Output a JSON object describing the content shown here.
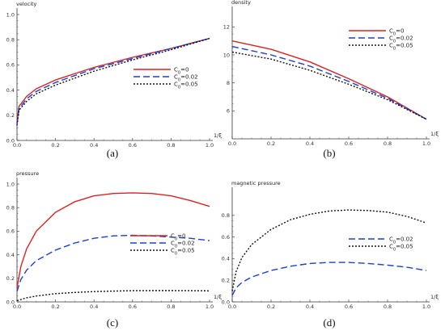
{
  "chart_data": [
    {
      "type": "line",
      "ylabel": "velocity",
      "xlabel": "1/ξ",
      "caption": "(a)",
      "xlim": [
        0,
        1.0
      ],
      "ylim": [
        0,
        1.0
      ],
      "xticks": [
        "0.0",
        "0.2",
        "0.4",
        "0.6",
        "0.8",
        "1.0"
      ],
      "yticks": [
        "0.0",
        "0.2",
        "0.4",
        "0.6",
        "0.8",
        "1.0"
      ],
      "legend_position": "center-right",
      "series": [
        {
          "name": "C0=0",
          "color": "#e02020",
          "dash": "solid",
          "x": [
            0,
            0.01,
            0.05,
            0.1,
            0.2,
            0.4,
            0.6,
            0.8,
            1.0
          ],
          "y": [
            0.14,
            0.27,
            0.35,
            0.41,
            0.48,
            0.58,
            0.66,
            0.73,
            0.81
          ]
        },
        {
          "name": "C0=0.02",
          "color": "#1a3fd6",
          "dash": "long",
          "x": [
            0,
            0.01,
            0.05,
            0.1,
            0.2,
            0.4,
            0.6,
            0.8,
            1.0
          ],
          "y": [
            0.13,
            0.25,
            0.33,
            0.39,
            0.46,
            0.57,
            0.65,
            0.73,
            0.81
          ]
        },
        {
          "name": "C0=0.05",
          "color": "#111111",
          "dash": "dot",
          "x": [
            0,
            0.01,
            0.05,
            0.1,
            0.2,
            0.4,
            0.6,
            0.8,
            1.0
          ],
          "y": [
            0.12,
            0.24,
            0.31,
            0.37,
            0.44,
            0.55,
            0.64,
            0.72,
            0.81
          ]
        }
      ]
    },
    {
      "type": "line",
      "ylabel": "density",
      "xlabel": "1/ξ",
      "caption": "(b)",
      "xlim": [
        0,
        1.0
      ],
      "ylim": [
        4,
        13
      ],
      "xticks": [
        "0.0",
        "0.2",
        "0.4",
        "0.6",
        "0.8",
        "1.0"
      ],
      "yticks": [
        "6",
        "8",
        "10",
        "12"
      ],
      "legend_position": "top-right",
      "series": [
        {
          "name": "C0=0",
          "color": "#e02020",
          "dash": "solid",
          "x": [
            0,
            0.2,
            0.4,
            0.6,
            0.8,
            1.0
          ],
          "y": [
            11.0,
            10.4,
            9.5,
            8.3,
            7.0,
            5.4
          ]
        },
        {
          "name": "C0=0.02",
          "color": "#1a3fd6",
          "dash": "long",
          "x": [
            0,
            0.2,
            0.4,
            0.6,
            0.8,
            1.0
          ],
          "y": [
            10.6,
            10.0,
            9.2,
            8.1,
            6.9,
            5.4
          ]
        },
        {
          "name": "C0=0.05",
          "color": "#111111",
          "dash": "dot",
          "x": [
            0,
            0.2,
            0.4,
            0.6,
            0.8,
            1.0
          ],
          "y": [
            10.2,
            9.7,
            8.9,
            7.9,
            6.8,
            5.4
          ]
        }
      ]
    },
    {
      "type": "line",
      "ylabel": "pressure",
      "xlabel": "1/ξ",
      "caption": "(c)",
      "xlim": [
        0,
        1.0
      ],
      "ylim": [
        0,
        1.0
      ],
      "xticks": [
        "0.0",
        "0.2",
        "0.4",
        "0.6",
        "0.8",
        "1.0"
      ],
      "yticks": [
        "0.0",
        "0.2",
        "0.4",
        "0.6",
        "0.8",
        "1.0"
      ],
      "legend_position": "center-right",
      "series": [
        {
          "name": "C0=0",
          "color": "#e02020",
          "dash": "solid",
          "x": [
            0,
            0.02,
            0.05,
            0.1,
            0.2,
            0.3,
            0.4,
            0.5,
            0.6,
            0.7,
            0.8,
            0.9,
            1.0
          ],
          "y": [
            0.12,
            0.3,
            0.45,
            0.6,
            0.76,
            0.85,
            0.9,
            0.92,
            0.925,
            0.92,
            0.9,
            0.86,
            0.81
          ]
        },
        {
          "name": "C0=0.02",
          "color": "#1a3fd6",
          "dash": "long",
          "x": [
            0,
            0.02,
            0.05,
            0.1,
            0.2,
            0.3,
            0.4,
            0.5,
            0.6,
            0.7,
            0.8,
            0.9,
            1.0
          ],
          "y": [
            0.09,
            0.19,
            0.27,
            0.35,
            0.44,
            0.5,
            0.54,
            0.56,
            0.565,
            0.56,
            0.55,
            0.54,
            0.52
          ]
        },
        {
          "name": "C0=0.05",
          "color": "#111111",
          "dash": "dot",
          "x": [
            0,
            0.02,
            0.05,
            0.1,
            0.2,
            0.3,
            0.4,
            0.5,
            0.6,
            0.7,
            0.8,
            0.9,
            1.0
          ],
          "y": [
            0.01,
            0.02,
            0.035,
            0.05,
            0.07,
            0.08,
            0.088,
            0.092,
            0.095,
            0.096,
            0.096,
            0.095,
            0.094
          ]
        }
      ]
    },
    {
      "type": "line",
      "ylabel": "magnetic pressure",
      "xlabel": "1/ξ",
      "caption": "(d)",
      "xlim": [
        0,
        1.0
      ],
      "ylim": [
        0,
        1.0
      ],
      "xticks": [
        "0.0",
        "0.2",
        "0.4",
        "0.6",
        "0.8",
        "1.0"
      ],
      "yticks": [
        "0.0",
        "0.2",
        "0.4",
        "0.6",
        "0.8"
      ],
      "legend_position": "center-right",
      "series": [
        {
          "name": "C0=0.02",
          "color": "#1a3fd6",
          "dash": "long",
          "x": [
            0,
            0.02,
            0.05,
            0.1,
            0.2,
            0.3,
            0.4,
            0.5,
            0.6,
            0.7,
            0.8,
            0.9,
            1.0
          ],
          "y": [
            0.06,
            0.13,
            0.18,
            0.23,
            0.29,
            0.33,
            0.355,
            0.365,
            0.365,
            0.355,
            0.34,
            0.32,
            0.29
          ]
        },
        {
          "name": "C0=0.05",
          "color": "#111111",
          "dash": "dot",
          "x": [
            0,
            0.02,
            0.05,
            0.1,
            0.2,
            0.3,
            0.4,
            0.5,
            0.6,
            0.7,
            0.8,
            0.9,
            1.0
          ],
          "y": [
            0.1,
            0.28,
            0.41,
            0.53,
            0.67,
            0.76,
            0.81,
            0.84,
            0.85,
            0.845,
            0.83,
            0.79,
            0.73
          ]
        }
      ]
    }
  ]
}
